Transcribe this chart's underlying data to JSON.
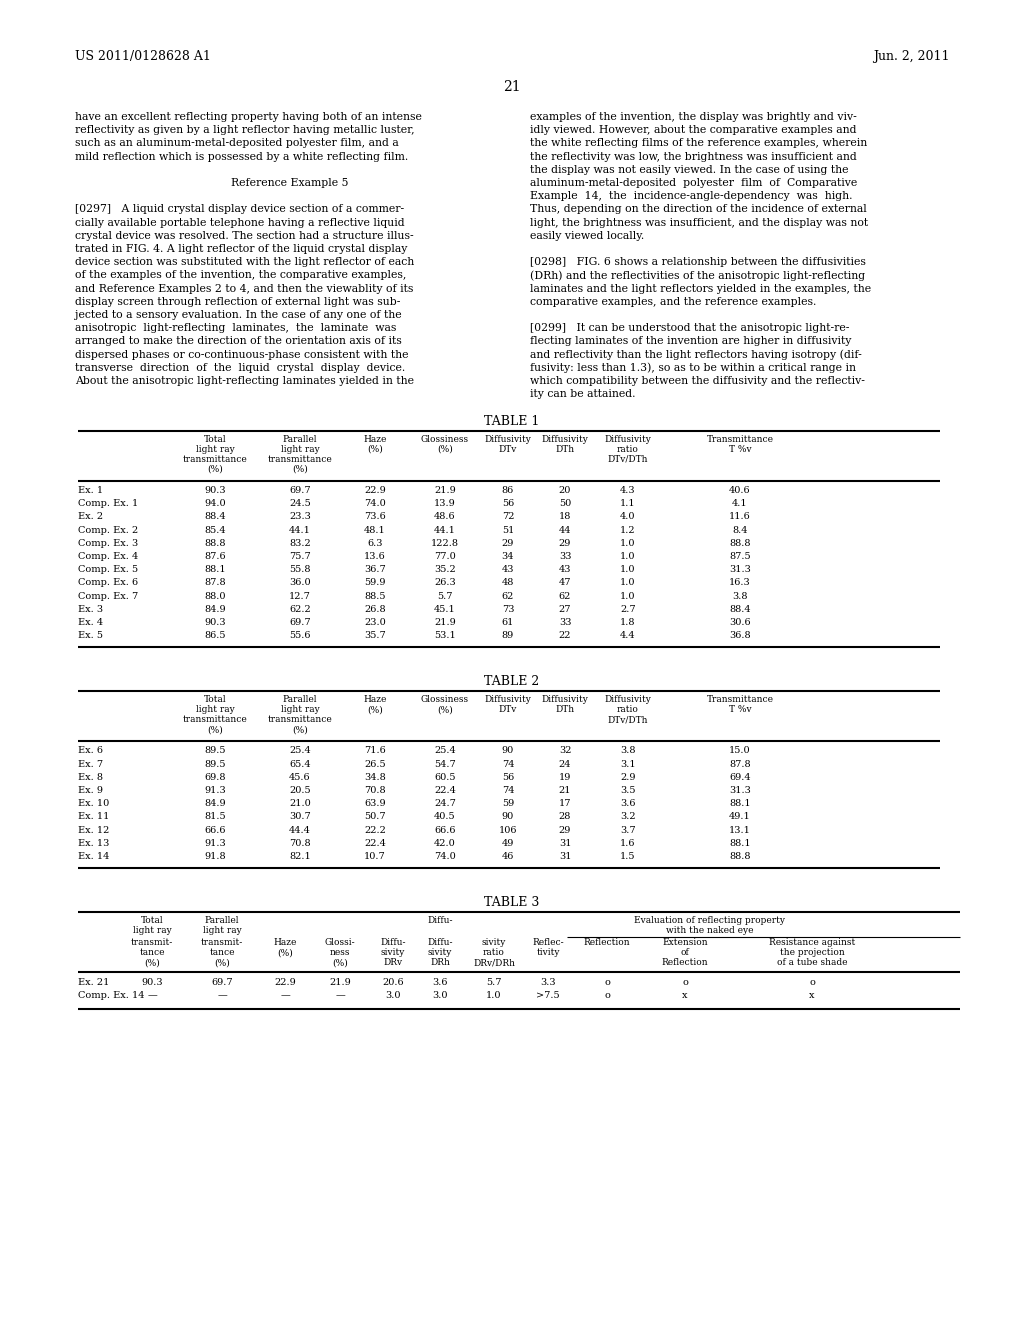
{
  "page_header_left": "US 2011/0128628 A1",
  "page_header_right": "Jun. 2, 2011",
  "page_number": "21",
  "left_col_text": [
    "have an excellent reflecting property having both of an intense",
    "reflectivity as given by a light reflector having metallic luster,",
    "such as an aluminum-metal-deposited polyester film, and a",
    "mild reflection which is possessed by a white reflecting film.",
    "",
    "Reference Example 5",
    "",
    "[0297]   A liquid crystal display device section of a commer-",
    "cially available portable telephone having a reflective liquid",
    "crystal device was resolved. The section had a structure illus-",
    "trated in FIG. 4. A light reflector of the liquid crystal display",
    "device section was substituted with the light reflector of each",
    "of the examples of the invention, the comparative examples,",
    "and Reference Examples 2 to 4, and then the viewablity of its",
    "display screen through reflection of external light was sub-",
    "jected to a sensory evaluation. In the case of any one of the",
    "anisotropic  light-reflecting  laminates,  the  laminate  was",
    "arranged to make the direction of the orientation axis of its",
    "dispersed phases or co-continuous-phase consistent with the",
    "transverse  direction  of  the  liquid  crystal  display  device.",
    "About the anisotropic light-reflecting laminates yielded in the"
  ],
  "right_col_text": [
    "examples of the invention, the display was brightly and viv-",
    "idly viewed. However, about the comparative examples and",
    "the white reflecting films of the reference examples, wherein",
    "the reflectivity was low, the brightness was insufficient and",
    "the display was not easily viewed. In the case of using the",
    "aluminum-metal-deposited  polyester  film  of  Comparative",
    "Example  14,  the  incidence-angle-dependency  was  high.",
    "Thus, depending on the direction of the incidence of external",
    "light, the brightness was insufficient, and the display was not",
    "easily viewed locally.",
    "",
    "[0298]   FIG. 6 shows a relationship between the diffusivities",
    "(DRh) and the reflectivities of the anisotropic light-reflecting",
    "laminates and the light reflectors yielded in the examples, the",
    "comparative examples, and the reference examples.",
    "",
    "[0299]   It can be understood that the anisotropic light-re-",
    "flecting laminates of the invention are higher in diffusivity",
    "and reflectivity than the light reflectors having isotropy (dif-",
    "fusivity: less than 1.3), so as to be within a critical range in",
    "which compatibility between the diffusivity and the reflectiv-",
    "ity can be attained."
  ],
  "table1_title": "TABLE 1",
  "table1_rows": [
    [
      "Ex. 1",
      "90.3",
      "69.7",
      "22.9",
      "21.9",
      "86",
      "20",
      "4.3",
      "40.6"
    ],
    [
      "Comp. Ex. 1",
      "94.0",
      "24.5",
      "74.0",
      "13.9",
      "56",
      "50",
      "1.1",
      "4.1"
    ],
    [
      "Ex. 2",
      "88.4",
      "23.3",
      "73.6",
      "48.6",
      "72",
      "18",
      "4.0",
      "11.6"
    ],
    [
      "Comp. Ex. 2",
      "85.4",
      "44.1",
      "48.1",
      "44.1",
      "51",
      "44",
      "1.2",
      "8.4"
    ],
    [
      "Comp. Ex. 3",
      "88.8",
      "83.2",
      "6.3",
      "122.8",
      "29",
      "29",
      "1.0",
      "88.8"
    ],
    [
      "Comp. Ex. 4",
      "87.6",
      "75.7",
      "13.6",
      "77.0",
      "34",
      "33",
      "1.0",
      "87.5"
    ],
    [
      "Comp. Ex. 5",
      "88.1",
      "55.8",
      "36.7",
      "35.2",
      "43",
      "43",
      "1.0",
      "31.3"
    ],
    [
      "Comp. Ex. 6",
      "87.8",
      "36.0",
      "59.9",
      "26.3",
      "48",
      "47",
      "1.0",
      "16.3"
    ],
    [
      "Comp. Ex. 7",
      "88.0",
      "12.7",
      "88.5",
      "5.7",
      "62",
      "62",
      "1.0",
      "3.8"
    ],
    [
      "Ex. 3",
      "84.9",
      "62.2",
      "26.8",
      "45.1",
      "73",
      "27",
      "2.7",
      "88.4"
    ],
    [
      "Ex. 4",
      "90.3",
      "69.7",
      "23.0",
      "21.9",
      "61",
      "33",
      "1.8",
      "30.6"
    ],
    [
      "Ex. 5",
      "86.5",
      "55.6",
      "35.7",
      "53.1",
      "89",
      "22",
      "4.4",
      "36.8"
    ]
  ],
  "table2_title": "TABLE 2",
  "table2_rows": [
    [
      "Ex. 6",
      "89.5",
      "25.4",
      "71.6",
      "25.4",
      "90",
      "32",
      "3.8",
      "15.0"
    ],
    [
      "Ex. 7",
      "89.5",
      "65.4",
      "26.5",
      "54.7",
      "74",
      "24",
      "3.1",
      "87.8"
    ],
    [
      "Ex. 8",
      "69.8",
      "45.6",
      "34.8",
      "60.5",
      "56",
      "19",
      "2.9",
      "69.4"
    ],
    [
      "Ex. 9",
      "91.3",
      "20.5",
      "70.8",
      "22.4",
      "74",
      "21",
      "3.5",
      "31.3"
    ],
    [
      "Ex. 10",
      "84.9",
      "21.0",
      "63.9",
      "24.7",
      "59",
      "17",
      "3.6",
      "88.1"
    ],
    [
      "Ex. 11",
      "81.5",
      "30.7",
      "50.7",
      "40.5",
      "90",
      "28",
      "3.2",
      "49.1"
    ],
    [
      "Ex. 12",
      "66.6",
      "44.4",
      "22.2",
      "66.6",
      "106",
      "29",
      "3.7",
      "13.1"
    ],
    [
      "Ex. 13",
      "91.3",
      "70.8",
      "22.4",
      "42.0",
      "49",
      "31",
      "1.6",
      "88.1"
    ],
    [
      "Ex. 14",
      "91.8",
      "82.1",
      "10.7",
      "74.0",
      "46",
      "31",
      "1.5",
      "88.8"
    ]
  ],
  "table3_title": "TABLE 3",
  "table3_rows": [
    [
      "Ex. 21",
      "90.3",
      "69.7",
      "22.9",
      "21.9",
      "20.6",
      "3.6",
      "5.7",
      "3.3",
      "o",
      "o",
      "o"
    ],
    [
      "Comp. Ex. 14",
      "—",
      "—",
      "—",
      "—",
      "3.0",
      "3.0",
      "1.0",
      ">7.5",
      "o",
      "x",
      "x"
    ]
  ],
  "bg_color": "#ffffff",
  "text_color": "#000000"
}
